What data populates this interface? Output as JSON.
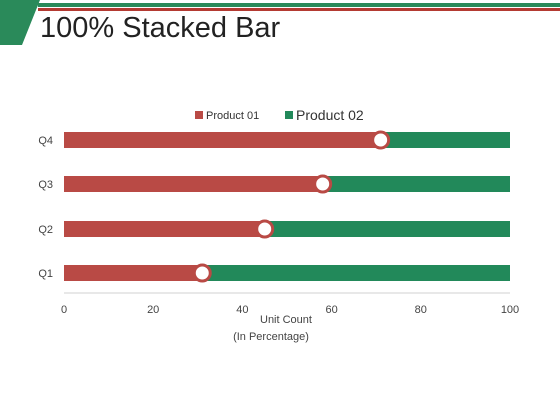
{
  "page": {
    "title": "100% Stacked Bar"
  },
  "colors": {
    "product_01": "#b94a45",
    "product_02": "#22895a",
    "header_green": "#2a8a5a",
    "header_red": "#b43a32",
    "marker_fill": "#ffffff"
  },
  "chart_data": {
    "type": "bar",
    "orientation": "horizontal",
    "stacked": "100%",
    "categories": [
      "Q1",
      "Q2",
      "Q3",
      "Q4"
    ],
    "series": [
      {
        "name": "Product 01",
        "values": [
          31,
          45,
          58,
          71
        ]
      },
      {
        "name": "Product 02",
        "values": [
          69,
          55,
          42,
          29
        ]
      }
    ],
    "xlim": [
      0,
      100
    ],
    "xticks": [
      0,
      20,
      40,
      60,
      80,
      100
    ],
    "xlabel": "Unit Count",
    "xlabel_sub": "(In Percentage)",
    "legend_position": "top",
    "grid": false
  }
}
